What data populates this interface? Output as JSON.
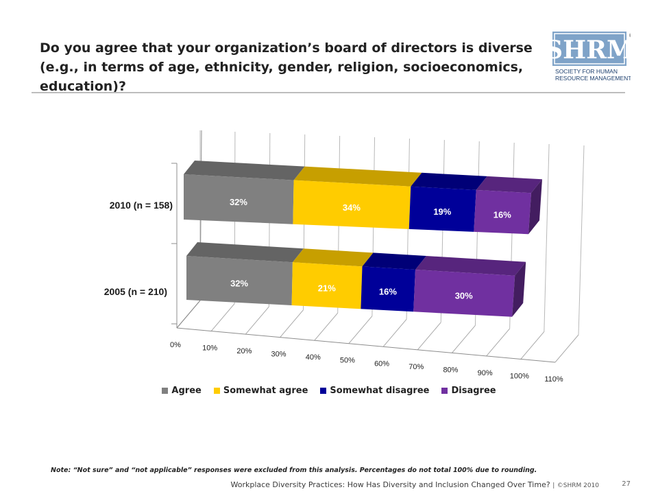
{
  "title": "Do you agree that your organization’s board of directors is diverse (e.g., in terms of age, ethnicity, gender, religion, socioeconomics, education)?",
  "logo": {
    "brand": "SHRM",
    "tagline_line1": "SOCIETY FOR HUMAN",
    "tagline_line2": "RESOURCE MANAGEMENT",
    "reg_mark": "®"
  },
  "colors": {
    "agree": "#808080",
    "somewhat_agree": "#FFCC00",
    "somewhat_disagree": "#000099",
    "disagree": "#7030A0"
  },
  "chart_data": {
    "type": "bar",
    "orientation": "horizontal-stacked-3d",
    "categories": [
      "2010 (n = 158)",
      "2005 (n = 210)"
    ],
    "series": [
      {
        "name": "Agree",
        "values": [
          32,
          32
        ],
        "labels": [
          "32%",
          "32%"
        ]
      },
      {
        "name": "Somewhat agree",
        "values": [
          34,
          21
        ],
        "labels": [
          "34%",
          "21%"
        ]
      },
      {
        "name": "Somewhat disagree",
        "values": [
          19,
          16
        ],
        "labels": [
          "19%",
          "16%"
        ]
      },
      {
        "name": "Disagree",
        "values": [
          16,
          30
        ],
        "labels": [
          "16%",
          "30%"
        ]
      }
    ],
    "x_ticks": [
      "0%",
      "10%",
      "20%",
      "30%",
      "40%",
      "50%",
      "60%",
      "70%",
      "80%",
      "90%",
      "100%",
      "110%"
    ],
    "xlim": [
      0,
      110
    ],
    "grid": true,
    "legend_position": "bottom"
  },
  "note": "Note: “Not sure” and “not applicable” responses were excluded from this analysis. Percentages do not total 100% due to rounding.",
  "footer": {
    "text": "Workplace Diversity Practices: How Has Diversity and Inclusion Changed Over Time?",
    "separator": "|",
    "copyright": "©SHRM 2010"
  },
  "page_number": "27"
}
